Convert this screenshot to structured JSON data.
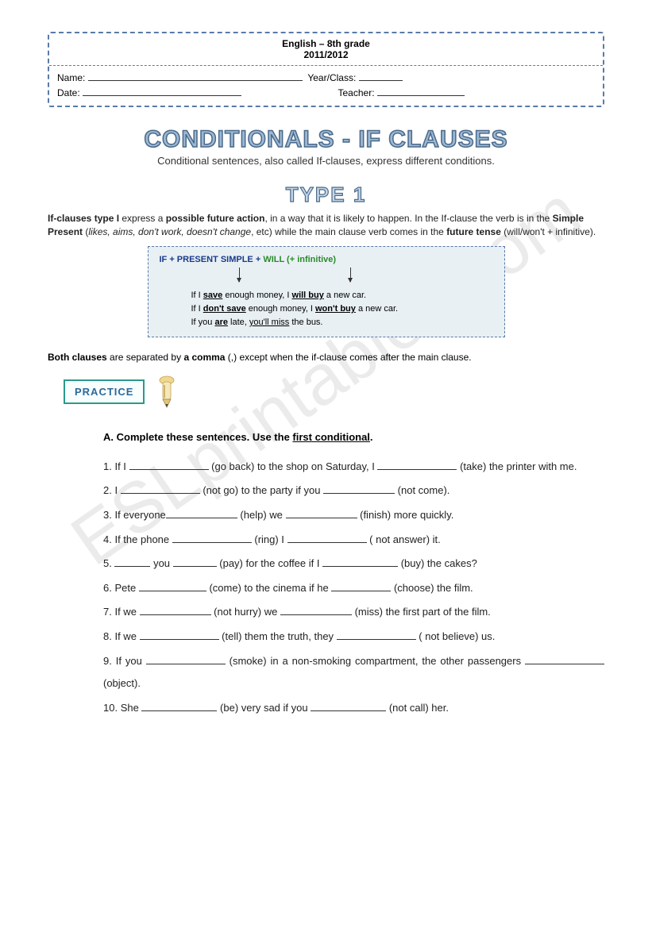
{
  "header": {
    "subject": "English – 8th grade",
    "year": "2011/2012",
    "fields": {
      "name_label": "Name:",
      "year_class_label": "Year/Class:",
      "date_label": "Date:",
      "teacher_label": "Teacher:"
    }
  },
  "title": {
    "main": "CONDITIONALS - IF CLAUSES",
    "sub": "Conditional sentences, also called If-clauses, express different conditions.",
    "type": "TYPE 1"
  },
  "explanation": {
    "p1_a": "If-clauses type I",
    "p1_b": " express a ",
    "p1_c": "possible future action",
    "p1_d": ", in a way that it is likely to happen.  In the If-clause the verb is in the ",
    "p1_e": "Simple Present",
    "p1_f": " (",
    "p1_g": "likes, aims, don't work, doesn't change",
    "p1_h": ", etc) while the main clause verb comes in the ",
    "p1_i": "future tense",
    "p1_j": " (will/won't + infinitive)."
  },
  "formula": {
    "head_if": "IF + PRESENT SIMPLE + ",
    "head_will": "WILL (+ infinitive)",
    "ex1_a": "If I ",
    "ex1_b": "save",
    "ex1_c": " enough money, I ",
    "ex1_d": "will buy",
    "ex1_e": " a new car.",
    "ex2_a": "If I ",
    "ex2_b": "don't save",
    "ex2_c": " enough money, I ",
    "ex2_d": "won't buy",
    "ex2_e": " a new car.",
    "ex3_a": "If you ",
    "ex3_b": "are",
    "ex3_c": " late, ",
    "ex3_d": "you'll miss",
    "ex3_e": " the bus."
  },
  "comma_note": {
    "a": "Both clauses",
    "b": " are separated by ",
    "c": "a comma",
    "d": " (,) except when the if-clause comes after the main clause."
  },
  "practice_label": "PRACTICE",
  "exercise": {
    "heading_a": "A. Complete these sentences. Use the ",
    "heading_b": "first conditional",
    "heading_c": ".",
    "items": [
      {
        "num": "1.",
        "parts": [
          "If I ",
          " (go back) to the shop on Saturday, I ",
          " (take) the printer with me."
        ],
        "blanks": [
          100,
          100
        ]
      },
      {
        "num": "2.",
        "parts": [
          "I ",
          " (not go) to the party if you ",
          " (not come)."
        ],
        "blanks": [
          100,
          90
        ]
      },
      {
        "num": "3.",
        "parts": [
          "If everyone",
          " (help) we ",
          " (finish) more quickly."
        ],
        "blanks": [
          90,
          90
        ]
      },
      {
        "num": "4.",
        "parts": [
          "If the phone ",
          " (ring) I ",
          " ( not answer) it."
        ],
        "blanks": [
          100,
          100
        ]
      },
      {
        "num": "5.",
        "parts": [
          "",
          " you ",
          " (pay) for the coffee if I ",
          " (buy) the cakes?"
        ],
        "blanks": [
          45,
          55,
          95
        ]
      },
      {
        "num": "6.",
        "parts": [
          "Pete ",
          " (come) to the cinema if he ",
          " (choose) the film."
        ],
        "blanks": [
          85,
          75
        ]
      },
      {
        "num": "7.",
        "parts": [
          "If we ",
          " (not hurry) we ",
          " (miss) the first part of the film."
        ],
        "blanks": [
          90,
          90
        ]
      },
      {
        "num": "8.",
        "parts": [
          "If we ",
          " (tell) them the truth, they ",
          " ( not believe) us."
        ],
        "blanks": [
          100,
          100
        ]
      },
      {
        "num": "9.",
        "parts": [
          "If you ",
          " (smoke) in a non-smoking compartment, the other passengers ",
          " (object)."
        ],
        "blanks": [
          100,
          100
        ],
        "justify": true
      },
      {
        "num": "10.",
        "parts": [
          "She ",
          " (be) very sad if you ",
          " (not call) her."
        ],
        "blanks": [
          95,
          95
        ]
      }
    ]
  },
  "watermark": "ESLprintables.com",
  "colors": {
    "dash_border": "#5a7aa8",
    "title_fill": "#9db8d4",
    "title_stroke": "#4a6a8a",
    "formula_bg": "#e8f0f4",
    "formula_blue": "#1a3a8a",
    "formula_green": "#2a8a2a",
    "practice_border": "#2a9a8a",
    "practice_text": "#2a6a9a"
  }
}
